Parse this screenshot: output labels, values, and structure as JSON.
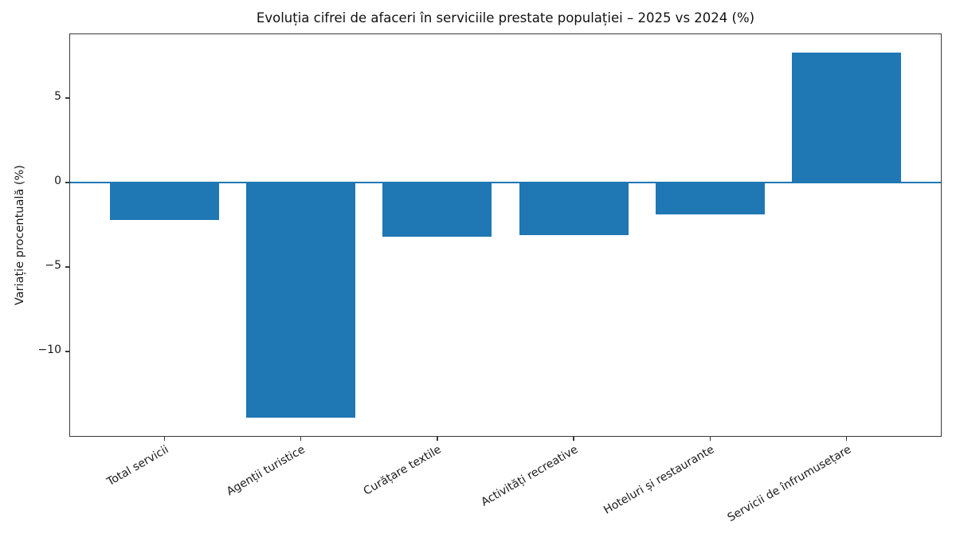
{
  "chart_data": {
    "type": "bar",
    "title": "Evoluția cifrei de afaceri în serviciile prestate populației – 2025 vs 2024 (%)",
    "ylabel": "Variație procentuală (%)",
    "xlabel": "",
    "categories": [
      "Total servicii",
      "Agenții turistice",
      "Curățare textile",
      "Activități recreative",
      "Hoteluri și restaurante",
      "Servicii de înfrumusețare"
    ],
    "values": [
      -2.2,
      -13.9,
      -3.2,
      -3.1,
      -1.9,
      7.7
    ],
    "bar_color": "#1f77b4",
    "zero_line_color": "#1f77b4",
    "axis_color": "#3a3a3a",
    "yticks": [
      5,
      0,
      -5,
      -10
    ],
    "ytick_labels": [
      "5",
      "0",
      "−5",
      "−10"
    ],
    "ylim": [
      -15.0,
      8.78
    ],
    "xlim": [
      -0.69,
      5.69
    ],
    "bar_width": 0.8,
    "grid": false,
    "legend": null,
    "xtick_rotation_deg": 30
  }
}
